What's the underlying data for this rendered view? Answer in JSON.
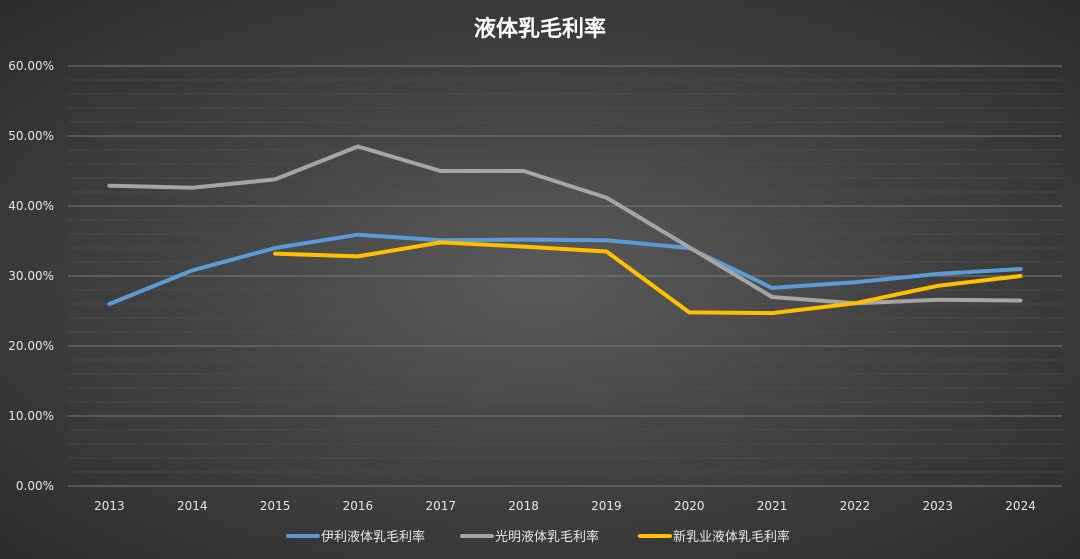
{
  "chart_data": {
    "type": "line",
    "title": "液体乳毛利率",
    "categories": [
      "2013",
      "2014",
      "2015",
      "2016",
      "2017",
      "2018",
      "2019",
      "2020",
      "2021",
      "2022",
      "2023",
      "2024"
    ],
    "ylim": [
      0,
      60
    ],
    "yticks": [
      0,
      10,
      20,
      30,
      40,
      50,
      60
    ],
    "ytick_labels": [
      "0.00%",
      "10.00%",
      "20.00%",
      "30.00%",
      "40.00%",
      "50.00%",
      "60.00%"
    ],
    "grid": true,
    "legend_position": "bottom",
    "series": [
      {
        "name": "伊利液体乳毛利率",
        "color": "#5b9bd5",
        "values": [
          26.0,
          30.8,
          34.0,
          35.9,
          35.1,
          35.2,
          35.1,
          34.0,
          28.3,
          29.1,
          30.3,
          31.0
        ]
      },
      {
        "name": "光明液体乳毛利率",
        "color": "#a5a5a5",
        "values": [
          42.9,
          42.6,
          43.8,
          48.5,
          45.0,
          45.0,
          41.2,
          34.1,
          27.0,
          26.1,
          26.6,
          26.5
        ]
      },
      {
        "name": "新乳业液体乳毛利率",
        "color": "#ffc000",
        "values": [
          null,
          null,
          33.2,
          32.8,
          34.8,
          34.2,
          33.5,
          24.8,
          24.7,
          26.1,
          28.6,
          30.0
        ]
      }
    ]
  }
}
